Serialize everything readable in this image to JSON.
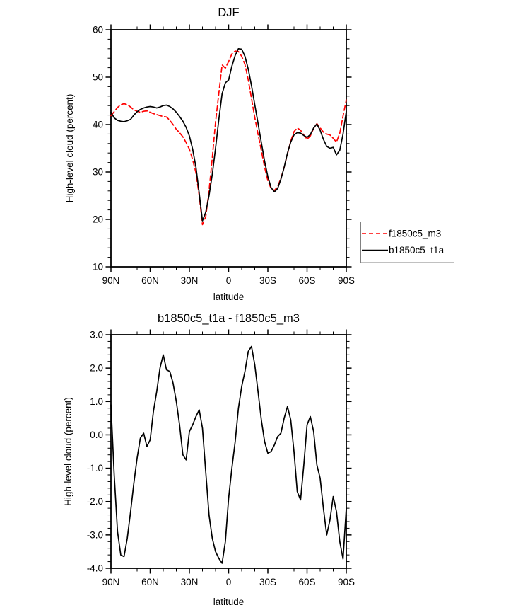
{
  "page": {
    "background": "#ffffff"
  },
  "lat_grid": {
    "start": 90,
    "step": -2.5,
    "count": 73
  },
  "chart_data": [
    {
      "type": "line",
      "title": "DJF",
      "xlabel": "latitude",
      "ylabel": "High-level cloud (percent)",
      "xlim": [
        90,
        -90
      ],
      "ylim": [
        10,
        60
      ],
      "grid": false,
      "legend_position": "outside-right",
      "x_ticks": {
        "majors": [
          90,
          60,
          30,
          0,
          -30,
          -60,
          -90
        ],
        "labels": [
          "90N",
          "60N",
          "30N",
          "0",
          "30S",
          "60S",
          "90S"
        ],
        "minor_step": 10
      },
      "y_ticks": {
        "majors": [
          60,
          50,
          40,
          30,
          20,
          10
        ],
        "labels": [
          "60",
          "50",
          "40",
          "30",
          "20",
          "10"
        ],
        "minor_step": 2
      },
      "series": [
        {
          "name": "f1850c5_m3",
          "color": "#ff0000",
          "dashed": true,
          "values": [
            41.9,
            42.7,
            43.6,
            44.2,
            44.4,
            44.2,
            43.7,
            43.1,
            42.8,
            42.6,
            42.8,
            42.9,
            42.6,
            42.3,
            42.1,
            41.9,
            41.7,
            41.6,
            40.9,
            40.0,
            39.0,
            38.3,
            37.4,
            36.2,
            34.8,
            32.6,
            29.8,
            25.0,
            18.9,
            20.5,
            26.0,
            33.0,
            40.5,
            46.5,
            52.6,
            51.9,
            53.3,
            54.9,
            55.5,
            55.4,
            54.4,
            52.7,
            49.4,
            45.5,
            41.5,
            38.0,
            34.5,
            31.0,
            28.2,
            26.5,
            26.1,
            26.9,
            28.7,
            31.0,
            33.8,
            36.5,
            38.5,
            39.3,
            38.8,
            37.8,
            36.9,
            37.6,
            39.2,
            40.2,
            39.3,
            38.4,
            38.0,
            37.8,
            37.1,
            36.3,
            38.2,
            41.8,
            45.2
          ]
        },
        {
          "name": "b1850c5_t1a",
          "color": "#000000",
          "dashed": false,
          "values": [
            42.6,
            41.4,
            40.9,
            40.7,
            40.6,
            40.8,
            41.1,
            42.0,
            42.7,
            43.2,
            43.5,
            43.7,
            43.8,
            43.7,
            43.5,
            43.7,
            44.0,
            44.1,
            43.8,
            43.3,
            42.6,
            41.7,
            40.7,
            39.4,
            37.6,
            34.8,
            31.0,
            25.5,
            19.7,
            21.5,
            25.0,
            29.5,
            35.0,
            41.0,
            46.5,
            48.8,
            49.4,
            52.3,
            54.6,
            56.0,
            55.9,
            54.4,
            51.7,
            48.2,
            44.2,
            40.3,
            36.2,
            32.3,
            29.0,
            26.7,
            25.8,
            26.5,
            28.5,
            31.0,
            34.0,
            36.3,
            37.8,
            38.3,
            38.2,
            37.7,
            37.3,
            37.9,
            39.3,
            40.1,
            38.8,
            36.9,
            35.4,
            35.0,
            35.2,
            33.6,
            34.6,
            38.0,
            42.8
          ]
        }
      ]
    },
    {
      "type": "line",
      "title": "b1850c5_t1a - f1850c5_m3",
      "xlabel": "latitude",
      "ylabel": "High-level cloud (percent)",
      "xlim": [
        90,
        -90
      ],
      "ylim": [
        -4,
        3
      ],
      "grid": false,
      "x_ticks": {
        "majors": [
          90,
          60,
          30,
          0,
          -30,
          -60,
          -90
        ],
        "labels": [
          "90N",
          "60N",
          "30N",
          "0",
          "30S",
          "60S",
          "90S"
        ],
        "minor_step": 10
      },
      "y_ticks": {
        "majors": [
          3,
          2,
          1,
          0,
          -1,
          -2,
          -3,
          -4
        ],
        "labels": [
          "3.0",
          "2.0",
          "1.0",
          "0.0",
          "-1.0",
          "-2.0",
          "-3.0",
          "-4.0"
        ],
        "minor_step": 0.2
      },
      "series": [
        {
          "name": "b1850c5_t1a - f1850c5_m3",
          "color": "#000000",
          "dashed": false,
          "values": [
            0.9,
            -1.2,
            -2.9,
            -3.6,
            -3.65,
            -3.1,
            -2.3,
            -1.45,
            -0.7,
            -0.1,
            0.05,
            -0.35,
            -0.15,
            0.7,
            1.3,
            2.0,
            2.4,
            1.95,
            1.9,
            1.55,
            1.0,
            0.3,
            -0.6,
            -0.75,
            0.1,
            0.3,
            0.55,
            0.75,
            0.2,
            -1.1,
            -2.4,
            -3.1,
            -3.5,
            -3.7,
            -3.85,
            -3.2,
            -1.9,
            -1.0,
            -0.2,
            0.8,
            1.45,
            1.9,
            2.5,
            2.65,
            2.1,
            1.3,
            0.45,
            -0.2,
            -0.55,
            -0.5,
            -0.3,
            -0.05,
            0.05,
            0.5,
            0.85,
            0.45,
            -0.5,
            -1.7,
            -1.95,
            -0.9,
            0.3,
            0.55,
            0.1,
            -0.9,
            -1.3,
            -2.2,
            -3.0,
            -2.55,
            -1.85,
            -2.3,
            -3.2,
            -3.72,
            -2.2
          ]
        }
      ]
    }
  ],
  "legend": {
    "entries": [
      "f1850c5_m3",
      "b1850c5_t1a"
    ]
  }
}
